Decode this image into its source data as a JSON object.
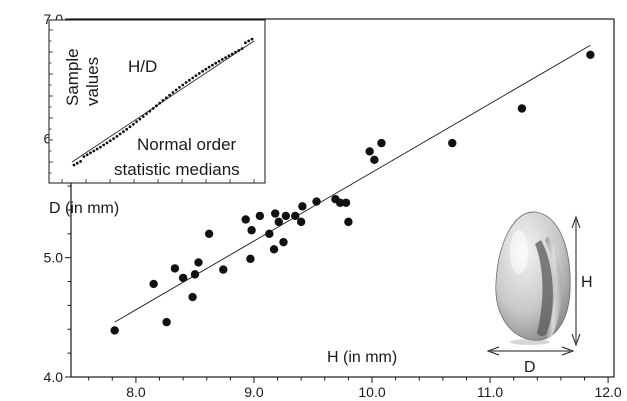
{
  "chart_data": {
    "type": "scatter",
    "xlabel": "H (in mm)",
    "ylabel": "D (in mm)",
    "xlim": [
      7.45,
      12.05
    ],
    "ylim": [
      4.0,
      7.0
    ],
    "x_ticks": [
      "8.0",
      "9.0",
      "10.0",
      "11.0",
      "12.0"
    ],
    "y_ticks": [
      "4.0",
      "5.0",
      "6.0",
      "7.0"
    ],
    "grid": false,
    "series": [
      {
        "points": [
          [
            7.82,
            4.39
          ],
          [
            8.15,
            4.78
          ],
          [
            8.26,
            4.46
          ],
          [
            8.33,
            4.91
          ],
          [
            8.4,
            4.83
          ],
          [
            8.48,
            4.67
          ],
          [
            8.5,
            4.86
          ],
          [
            8.53,
            4.96
          ],
          [
            8.62,
            5.2
          ],
          [
            8.74,
            4.9
          ],
          [
            8.93,
            5.32
          ],
          [
            8.97,
            4.99
          ],
          [
            8.98,
            5.23
          ],
          [
            9.05,
            5.35
          ],
          [
            9.13,
            5.2
          ],
          [
            9.17,
            5.07
          ],
          [
            9.18,
            5.37
          ],
          [
            9.21,
            5.3
          ],
          [
            9.25,
            5.13
          ],
          [
            9.27,
            5.35
          ],
          [
            9.35,
            5.35
          ],
          [
            9.4,
            5.3
          ],
          [
            9.41,
            5.43
          ],
          [
            9.53,
            5.47
          ],
          [
            9.69,
            5.49
          ],
          [
            9.73,
            5.46
          ],
          [
            9.78,
            5.46
          ],
          [
            9.8,
            5.3
          ],
          [
            9.98,
            5.89
          ],
          [
            10.02,
            5.82
          ],
          [
            10.08,
            5.96
          ],
          [
            10.68,
            5.96
          ],
          [
            11.27,
            6.25
          ],
          [
            11.85,
            6.7
          ]
        ]
      }
    ],
    "fit_line": {
      "x": [
        7.82,
        11.85
      ],
      "y": [
        4.46,
        6.78
      ]
    },
    "inset": {
      "title": "H/D",
      "xlabel": "Normal order statistic medians",
      "xlabel_lines": [
        "Normal order",
        "statistic medians"
      ],
      "ylabel_lines": [
        "Sample",
        "values"
      ],
      "n_points": 55
    },
    "diagram_labels": {
      "height": "H",
      "diameter": "D"
    }
  }
}
